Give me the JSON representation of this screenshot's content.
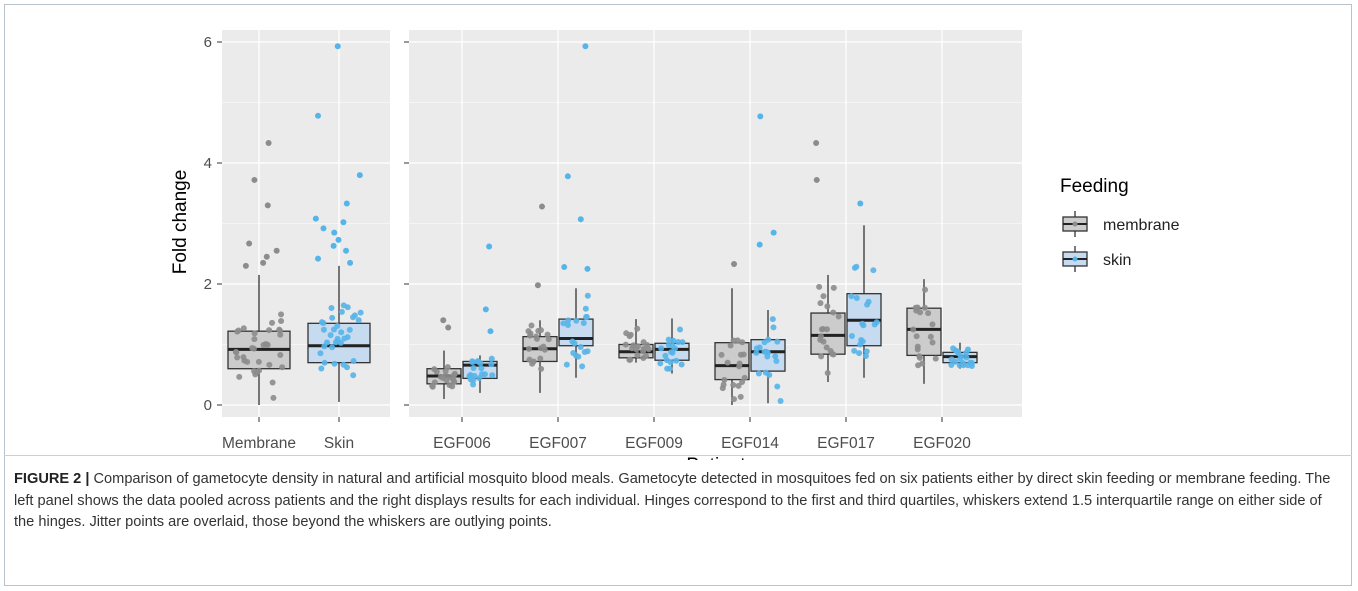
{
  "chart_data": [
    {
      "type": "boxplot",
      "panel": "pooled",
      "categories": [
        "Membrane",
        "Skin"
      ],
      "ylabel": "Fold change",
      "xlabel": "",
      "ylim": [
        -0.2,
        6.1
      ],
      "yticks": [
        0,
        2,
        4,
        6
      ],
      "grid": true,
      "boxes": [
        {
          "category": "Membrane",
          "group": "membrane",
          "min": 0.0,
          "q1": 0.6,
          "median": 0.92,
          "q3": 1.22,
          "max": 2.15
        },
        {
          "category": "Skin",
          "group": "skin",
          "min": 0.05,
          "q1": 0.7,
          "median": 0.98,
          "q3": 1.35,
          "max": 2.3
        }
      ],
      "outliers": [
        {
          "category": "Membrane",
          "values": [
            4.33,
            3.72,
            3.3,
            2.67,
            2.55,
            2.45,
            2.35,
            2.3
          ]
        },
        {
          "category": "Skin",
          "values": [
            5.93,
            4.78,
            3.8,
            3.33,
            3.08,
            3.02,
            2.92,
            2.85,
            2.73,
            2.63,
            2.55,
            2.42,
            2.35
          ]
        }
      ]
    },
    {
      "type": "boxplot",
      "panel": "per-patient",
      "categories": [
        "EGF006",
        "EGF007",
        "EGF009",
        "EGF014",
        "EGF017",
        "EGF020"
      ],
      "xlabel": "Patient",
      "ylim": [
        -0.2,
        6.1
      ],
      "yticks": [
        0,
        2,
        4,
        6
      ],
      "grid": true,
      "legend_position": "right",
      "series": [
        {
          "name": "membrane",
          "boxes": [
            {
              "category": "EGF006",
              "min": 0.1,
              "q1": 0.35,
              "median": 0.48,
              "q3": 0.6,
              "max": 0.9
            },
            {
              "category": "EGF007",
              "min": 0.2,
              "q1": 0.72,
              "median": 0.93,
              "q3": 1.13,
              "max": 1.4
            },
            {
              "category": "EGF009",
              "min": 0.7,
              "q1": 0.78,
              "median": 0.88,
              "q3": 1.0,
              "max": 1.42
            },
            {
              "category": "EGF014",
              "min": 0.0,
              "q1": 0.42,
              "median": 0.65,
              "q3": 1.03,
              "max": 1.93
            },
            {
              "category": "EGF017",
              "min": 0.38,
              "q1": 0.84,
              "median": 1.15,
              "q3": 1.52,
              "max": 2.15
            },
            {
              "category": "EGF020",
              "min": 0.35,
              "q1": 0.82,
              "median": 1.25,
              "q3": 1.6,
              "max": 2.08
            }
          ]
        },
        {
          "name": "skin",
          "boxes": [
            {
              "category": "EGF006",
              "min": 0.2,
              "q1": 0.44,
              "median": 0.66,
              "q3": 0.72,
              "max": 0.82
            },
            {
              "category": "EGF007",
              "min": 0.45,
              "q1": 0.98,
              "median": 1.1,
              "q3": 1.42,
              "max": 1.93
            },
            {
              "category": "EGF009",
              "min": 0.52,
              "q1": 0.74,
              "median": 0.92,
              "q3": 1.02,
              "max": 1.43
            },
            {
              "category": "EGF014",
              "min": 0.03,
              "q1": 0.56,
              "median": 0.88,
              "q3": 1.08,
              "max": 1.57
            },
            {
              "category": "EGF017",
              "min": 0.45,
              "q1": 0.98,
              "median": 1.4,
              "q3": 1.84,
              "max": 2.97
            },
            {
              "category": "EGF020",
              "min": 0.6,
              "q1": 0.7,
              "median": 0.8,
              "q3": 0.87,
              "max": 1.03
            }
          ]
        }
      ],
      "outliers": [
        {
          "category": "EGF006",
          "group": "membrane",
          "values": [
            1.4,
            1.28
          ]
        },
        {
          "category": "EGF006",
          "group": "skin",
          "values": [
            2.62,
            1.58,
            1.22
          ]
        },
        {
          "category": "EGF007",
          "group": "membrane",
          "values": [
            3.28,
            1.98
          ]
        },
        {
          "category": "EGF007",
          "group": "skin",
          "values": [
            5.93,
            3.78,
            3.07,
            2.28,
            2.25
          ]
        },
        {
          "category": "EGF014",
          "group": "membrane",
          "values": [
            2.33
          ]
        },
        {
          "category": "EGF014",
          "group": "skin",
          "values": [
            4.77,
            2.85,
            2.65
          ]
        },
        {
          "category": "EGF017",
          "group": "membrane",
          "values": [
            4.33,
            3.72
          ]
        },
        {
          "category": "EGF017",
          "group": "skin",
          "values": [
            3.33
          ]
        }
      ]
    }
  ],
  "legend": {
    "title": "Feeding",
    "items": [
      {
        "label": "membrane",
        "box_fill": "#cccccc",
        "dot_color": "#8c8c8c"
      },
      {
        "label": "skin",
        "box_fill": "#c6dbef",
        "dot_color": "#56b4e9"
      }
    ]
  },
  "colors": {
    "panel_background": "#ebebeb",
    "grid": "#ffffff",
    "box_outline": "#333333",
    "membrane_box": "#cccccc",
    "skin_box": "#c6dbef",
    "membrane_points": "#8c8c8c",
    "skin_points": "#56b4e9",
    "axis_text": "#4d4d4d",
    "caption_text": "#333333"
  },
  "caption": {
    "label": "FIGURE 2 |",
    "text": " Comparison of gametocyte density in natural and artificial mosquito blood meals. Gametocyte detected in mosquitoes fed on six patients either by direct skin feeding or membrane feeding. The left panel shows the data pooled across patients and the right displays results for each individual. Hinges correspond to the first and third quartiles, whiskers extend 1.5 interquartile range on either side of the hinges. Jitter points are overlaid, those beyond the whiskers are outlying points."
  }
}
